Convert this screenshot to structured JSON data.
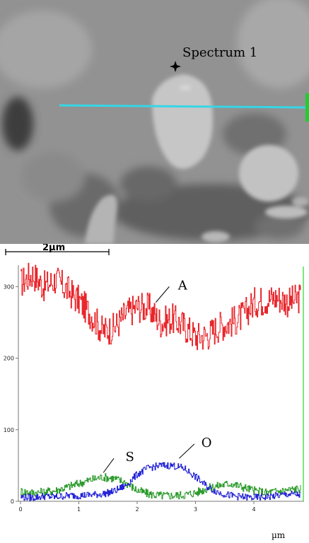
{
  "micrograph": {
    "spectrum_label": "Spectrum 1",
    "scale_bar_label": "2µm",
    "line_color": "#35d6e6",
    "end_marker_color": "#22cc33"
  },
  "chart_data": {
    "type": "line",
    "x_unit": "µm",
    "x_ticks": [
      0,
      1,
      2,
      3,
      4
    ],
    "y_ticks": [
      0,
      100,
      200,
      300
    ],
    "xlim": [
      0,
      4.8
    ],
    "ylim": [
      0,
      330
    ],
    "grid": false,
    "annotations": [
      {
        "text": "A",
        "series": "A"
      },
      {
        "text": "S",
        "series": "S"
      },
      {
        "text": "O",
        "series": "O"
      }
    ],
    "series": [
      {
        "name": "A",
        "color": "#e8262b",
        "x": [
          0.0,
          0.2,
          0.4,
          0.6,
          0.8,
          1.0,
          1.2,
          1.4,
          1.6,
          1.8,
          2.0,
          2.2,
          2.4,
          2.6,
          2.8,
          3.0,
          3.2,
          3.4,
          3.6,
          3.8,
          4.0,
          4.2,
          4.4,
          4.6,
          4.8
        ],
        "y": [
          305,
          318,
          300,
          310,
          295,
          280,
          262,
          238,
          242,
          262,
          272,
          270,
          250,
          255,
          245,
          230,
          232,
          245,
          250,
          258,
          278,
          282,
          285,
          278,
          285
        ]
      },
      {
        "name": "S",
        "color": "#2e9b2e",
        "x": [
          0.0,
          0.2,
          0.4,
          0.6,
          0.8,
          1.0,
          1.2,
          1.4,
          1.6,
          1.8,
          2.0,
          2.2,
          2.4,
          2.6,
          2.8,
          3.0,
          3.2,
          3.4,
          3.6,
          3.8,
          4.0,
          4.2,
          4.4,
          4.6,
          4.8
        ],
        "y": [
          14,
          12,
          13,
          15,
          20,
          25,
          30,
          34,
          32,
          26,
          15,
          10,
          8,
          8,
          9,
          12,
          18,
          22,
          25,
          20,
          15,
          12,
          14,
          16,
          18
        ]
      },
      {
        "name": "O",
        "color": "#2424d6",
        "x": [
          0.0,
          0.2,
          0.4,
          0.6,
          0.8,
          1.0,
          1.2,
          1.4,
          1.6,
          1.8,
          2.0,
          2.2,
          2.4,
          2.6,
          2.8,
          3.0,
          3.2,
          3.4,
          3.6,
          3.8,
          4.0,
          4.2,
          4.4,
          4.6,
          4.8
        ],
        "y": [
          6,
          5,
          7,
          6,
          8,
          8,
          9,
          10,
          14,
          22,
          38,
          47,
          50,
          50,
          46,
          34,
          20,
          12,
          8,
          6,
          5,
          6,
          8,
          10,
          9
        ]
      }
    ]
  }
}
